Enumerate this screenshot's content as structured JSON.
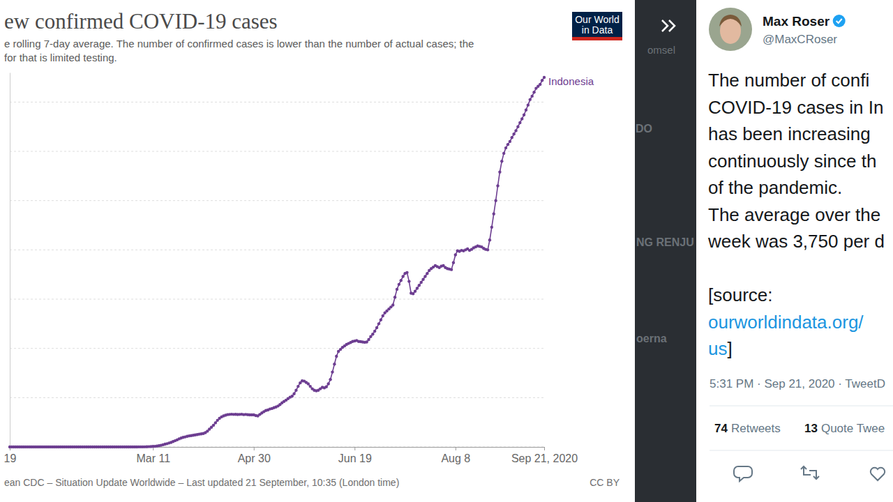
{
  "chart_data": {
    "type": "line",
    "title": "ew confirmed COVID-19 cases",
    "subtitle": [
      "e rolling 7-day average. The number of confirmed cases is lower than the number of actual cases; the",
      "for that is limited testing."
    ],
    "x": [
      "2019-12-31",
      "2020-01-01",
      "2020-01-02",
      "2020-01-03",
      "2020-01-04",
      "2020-01-05",
      "2020-01-06",
      "2020-01-07",
      "2020-01-08",
      "2020-01-09",
      "2020-01-10",
      "2020-01-11",
      "2020-01-12",
      "2020-01-13",
      "2020-01-14",
      "2020-01-15",
      "2020-01-16",
      "2020-01-17",
      "2020-01-18",
      "2020-01-19",
      "2020-01-20",
      "2020-01-21",
      "2020-01-22",
      "2020-01-23",
      "2020-01-24",
      "2020-01-25",
      "2020-01-26",
      "2020-01-27",
      "2020-01-28",
      "2020-01-29",
      "2020-01-30",
      "2020-01-31",
      "2020-02-01",
      "2020-02-02",
      "2020-02-03",
      "2020-02-04",
      "2020-02-05",
      "2020-02-06",
      "2020-02-07",
      "2020-02-08",
      "2020-02-09",
      "2020-02-10",
      "2020-02-11",
      "2020-02-12",
      "2020-02-13",
      "2020-02-14",
      "2020-02-15",
      "2020-02-16",
      "2020-02-17",
      "2020-02-18",
      "2020-02-19",
      "2020-02-20",
      "2020-02-21",
      "2020-02-22",
      "2020-02-23",
      "2020-02-24",
      "2020-02-25",
      "2020-02-26",
      "2020-02-27",
      "2020-02-28",
      "2020-02-29",
      "2020-03-01",
      "2020-03-02",
      "2020-03-03",
      "2020-03-04",
      "2020-03-05",
      "2020-03-06",
      "2020-03-07",
      "2020-03-08",
      "2020-03-09",
      "2020-03-10",
      "2020-03-11",
      "2020-03-12",
      "2020-03-13",
      "2020-03-14",
      "2020-03-15",
      "2020-03-16",
      "2020-03-17",
      "2020-03-18",
      "2020-03-19",
      "2020-03-20",
      "2020-03-21",
      "2020-03-22",
      "2020-03-23",
      "2020-03-24",
      "2020-03-25",
      "2020-03-26",
      "2020-03-27",
      "2020-03-28",
      "2020-03-29",
      "2020-03-30",
      "2020-03-31",
      "2020-04-01",
      "2020-04-02",
      "2020-04-03",
      "2020-04-04",
      "2020-04-05",
      "2020-04-06",
      "2020-04-07",
      "2020-04-08",
      "2020-04-09",
      "2020-04-10",
      "2020-04-11",
      "2020-04-12",
      "2020-04-13",
      "2020-04-14",
      "2020-04-15",
      "2020-04-16",
      "2020-04-17",
      "2020-04-18",
      "2020-04-19",
      "2020-04-20",
      "2020-04-21",
      "2020-04-22",
      "2020-04-23",
      "2020-04-24",
      "2020-04-25",
      "2020-04-26",
      "2020-04-27",
      "2020-04-28",
      "2020-04-29",
      "2020-04-30",
      "2020-05-01",
      "2020-05-02",
      "2020-05-03",
      "2020-05-04",
      "2020-05-05",
      "2020-05-06",
      "2020-05-07",
      "2020-05-08",
      "2020-05-09",
      "2020-05-10",
      "2020-05-11",
      "2020-05-12",
      "2020-05-13",
      "2020-05-14",
      "2020-05-15",
      "2020-05-16",
      "2020-05-17",
      "2020-05-18",
      "2020-05-19",
      "2020-05-20",
      "2020-05-21",
      "2020-05-22",
      "2020-05-23",
      "2020-05-24",
      "2020-05-25",
      "2020-05-26",
      "2020-05-27",
      "2020-05-28",
      "2020-05-29",
      "2020-05-30",
      "2020-05-31",
      "2020-06-01",
      "2020-06-02",
      "2020-06-03",
      "2020-06-04",
      "2020-06-05",
      "2020-06-06",
      "2020-06-07",
      "2020-06-08",
      "2020-06-09",
      "2020-06-10",
      "2020-06-11",
      "2020-06-12",
      "2020-06-13",
      "2020-06-14",
      "2020-06-15",
      "2020-06-16",
      "2020-06-17",
      "2020-06-18",
      "2020-06-19",
      "2020-06-20",
      "2020-06-21",
      "2020-06-22",
      "2020-06-23",
      "2020-06-24",
      "2020-06-25",
      "2020-06-26",
      "2020-06-27",
      "2020-06-28",
      "2020-06-29",
      "2020-06-30",
      "2020-07-01",
      "2020-07-02",
      "2020-07-03",
      "2020-07-04",
      "2020-07-05",
      "2020-07-06",
      "2020-07-07",
      "2020-07-08",
      "2020-07-09",
      "2020-07-10",
      "2020-07-11",
      "2020-07-12",
      "2020-07-13",
      "2020-07-14",
      "2020-07-15",
      "2020-07-16",
      "2020-07-17",
      "2020-07-18",
      "2020-07-19",
      "2020-07-20",
      "2020-07-21",
      "2020-07-22",
      "2020-07-23",
      "2020-07-24",
      "2020-07-25",
      "2020-07-26",
      "2020-07-27",
      "2020-07-28",
      "2020-07-29",
      "2020-07-30",
      "2020-07-31",
      "2020-08-01",
      "2020-08-02",
      "2020-08-03",
      "2020-08-04",
      "2020-08-05",
      "2020-08-06",
      "2020-08-07",
      "2020-08-08",
      "2020-08-09",
      "2020-08-10",
      "2020-08-11",
      "2020-08-12",
      "2020-08-13",
      "2020-08-14",
      "2020-08-15",
      "2020-08-16",
      "2020-08-17",
      "2020-08-18",
      "2020-08-19",
      "2020-08-20",
      "2020-08-21",
      "2020-08-22",
      "2020-08-23",
      "2020-08-24",
      "2020-08-25",
      "2020-08-26",
      "2020-08-27",
      "2020-08-28",
      "2020-08-29",
      "2020-08-30",
      "2020-08-31",
      "2020-09-01",
      "2020-09-02",
      "2020-09-03",
      "2020-09-04",
      "2020-09-05",
      "2020-09-06",
      "2020-09-07",
      "2020-09-08",
      "2020-09-09",
      "2020-09-10",
      "2020-09-11",
      "2020-09-12",
      "2020-09-13",
      "2020-09-14",
      "2020-09-15",
      "2020-09-16",
      "2020-09-17",
      "2020-09-18",
      "2020-09-19",
      "2020-09-20",
      "2020-09-21"
    ],
    "series": [
      {
        "name": "Indonesia",
        "color": "#6d3e91",
        "values": [
          0,
          0,
          0,
          0,
          0,
          0,
          0,
          0,
          0,
          0,
          0,
          0,
          0,
          0,
          0,
          0,
          0,
          0,
          0,
          0,
          0,
          0,
          0,
          0,
          0,
          0,
          0,
          0,
          0,
          0,
          0,
          0,
          0,
          0,
          0,
          0,
          0,
          0,
          0,
          0,
          0,
          0,
          0,
          0,
          0,
          0,
          0,
          0,
          0,
          0,
          0,
          0,
          0,
          0,
          0,
          0,
          0,
          0,
          0,
          0,
          0,
          0,
          0.3,
          0.3,
          0.6,
          0.6,
          0.6,
          0.9,
          2,
          3,
          4,
          5,
          6,
          9,
          13,
          17,
          22,
          28,
          33,
          40,
          46,
          55,
          63,
          72,
          82,
          90,
          97,
          102,
          108,
          112,
          115,
          118,
          122,
          126,
          130,
          133,
          136,
          145,
          160,
          180,
          200,
          220,
          245,
          270,
          290,
          305,
          315,
          322,
          328,
          330,
          332,
          330,
          331,
          329,
          330,
          332,
          328,
          330,
          327,
          325,
          326,
          325,
          318,
          315,
          330,
          345,
          358,
          370,
          375,
          385,
          390,
          398,
          405,
          415,
          430,
          448,
          462,
          475,
          490,
          505,
          515,
          540,
          575,
          615,
          650,
          670,
          668,
          655,
          640,
          615,
          590,
          575,
          570,
          575,
          590,
          605,
          600,
          610,
          640,
          685,
          760,
          840,
          920,
          970,
          990,
          1010,
          1025,
          1040,
          1050,
          1060,
          1070,
          1075,
          1080,
          1070,
          1068,
          1065,
          1062,
          1065,
          1090,
          1120,
          1145,
          1175,
          1210,
          1250,
          1290,
          1330,
          1360,
          1380,
          1400,
          1420,
          1440,
          1520,
          1600,
          1650,
          1690,
          1730,
          1760,
          1770,
          1680,
          1560,
          1555,
          1580,
          1610,
          1640,
          1670,
          1700,
          1730,
          1760,
          1790,
          1810,
          1825,
          1840,
          1830,
          1820,
          1835,
          1840,
          1820,
          1810,
          1805,
          1800,
          1870,
          1950,
          1990,
          1985,
          1995,
          1990,
          2000,
          2010,
          1995,
          2005,
          2020,
          2030,
          2040,
          2035,
          2030,
          2015,
          2005,
          2000,
          2100,
          2230,
          2365,
          2500,
          2650,
          2790,
          2900,
          2980,
          3035,
          3070,
          3100,
          3140,
          3175,
          3210,
          3250,
          3290,
          3330,
          3370,
          3420,
          3470,
          3525,
          3560,
          3600,
          3640,
          3660,
          3680,
          3720,
          3750
        ]
      }
    ],
    "xlim": [
      "2019-12-31",
      "2020-09-21"
    ],
    "xticks": [
      {
        "value": "2019-12-31",
        "label": "19"
      },
      {
        "value": "2020-03-11",
        "label": "Mar 11"
      },
      {
        "value": "2020-04-30",
        "label": "Apr 30"
      },
      {
        "value": "2020-06-19",
        "label": "Jun 19"
      },
      {
        "value": "2020-08-08",
        "label": "Aug 8"
      },
      {
        "value": "2020-09-21",
        "label": "Sep 21, 2020"
      }
    ],
    "ylim": [
      0,
      3800
    ],
    "yticks": [
      0,
      500,
      1000,
      1500,
      2000,
      2500,
      3000,
      3500
    ],
    "grid": true,
    "tick_labels": "x",
    "marker": "circle",
    "source": "ean CDC – Situation Update Worldwide – Last updated 21 September, 10:35 (London time)",
    "license": "CC BY"
  },
  "logo": [
    "Our World",
    "in Data"
  ],
  "sidebar": [
    "omsel",
    "DO",
    "NG RENJU",
    "oerna"
  ],
  "tweet": {
    "name": "Max Roser",
    "handle": "@MaxCRoser",
    "body": [
      [
        [
          {
            "text": "The number of confi",
            "link": false
          }
        ],
        [
          {
            "text": "COVID-19 cases in In",
            "link": false
          }
        ],
        [
          {
            "text": "has been increasing",
            "link": false
          }
        ],
        [
          {
            "text": "continuously since th",
            "link": false
          }
        ],
        [
          {
            "text": "of the pandemic.",
            "link": false
          }
        ],
        [
          {
            "text": "The average over the",
            "link": false
          }
        ],
        [
          {
            "text": "week was 3,750 per d",
            "link": false
          }
        ]
      ],
      [
        [
          {
            "text": "[source:",
            "link": false
          }
        ],
        [
          {
            "text": "ourworldindata.org/",
            "link": true
          }
        ],
        [
          {
            "text": "us",
            "link": true
          },
          {
            "text": "]",
            "link": false
          }
        ]
      ]
    ],
    "meta": "5:31 PM · Sep 21, 2020 · TweetD",
    "stats": [
      {
        "count": 74,
        "label": "Retweets"
      },
      {
        "count": 13,
        "label": "Quote Twee"
      }
    ]
  }
}
